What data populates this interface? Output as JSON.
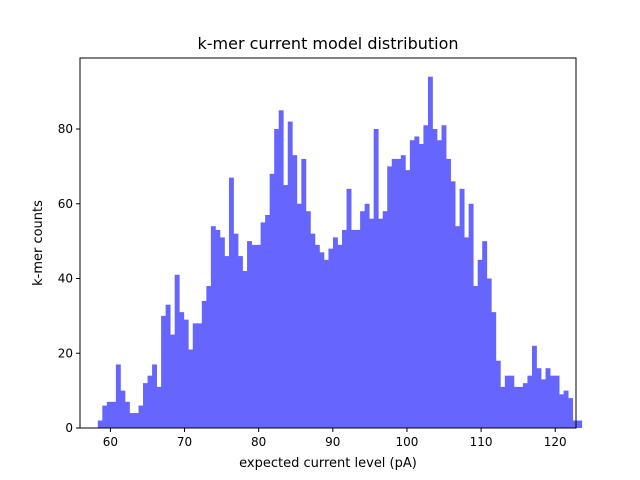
{
  "chart_data": {
    "type": "bar",
    "title": "k-mer current model distribution",
    "xlabel": "expected current level (pA)",
    "ylabel": "k-mer counts",
    "xlim": [
      55.9,
      122.8
    ],
    "ylim": [
      0,
      99
    ],
    "xticks": [
      60,
      70,
      80,
      90,
      100,
      110,
      120
    ],
    "yticks": [
      0,
      20,
      40,
      60,
      80
    ],
    "bar_color": "#6666ff",
    "grid": false,
    "bin_start": 58.3,
    "bin_width": 0.61,
    "counts": [
      2,
      6,
      7,
      7,
      17,
      10,
      7,
      4,
      4,
      6,
      12,
      14,
      17,
      11,
      30,
      33,
      25,
      41,
      31,
      29,
      21,
      28,
      28,
      34,
      38,
      54,
      53,
      51,
      46,
      67,
      52,
      46,
      42,
      50,
      49,
      49,
      55,
      57,
      68,
      80,
      85,
      65,
      82,
      73,
      60,
      72,
      58,
      52,
      49,
      47,
      45,
      48,
      51,
      49,
      53,
      64,
      53,
      53,
      58,
      60,
      56,
      80,
      56,
      58,
      70,
      72,
      72,
      73,
      69,
      77,
      78,
      76,
      81,
      94,
      80,
      77,
      81,
      72,
      66,
      54,
      64,
      51,
      60,
      38,
      45,
      50,
      40,
      31,
      18,
      11,
      14,
      14,
      11,
      11,
      12,
      14,
      22,
      16,
      13,
      16,
      14,
      14,
      9,
      10,
      8,
      2,
      2
    ]
  }
}
